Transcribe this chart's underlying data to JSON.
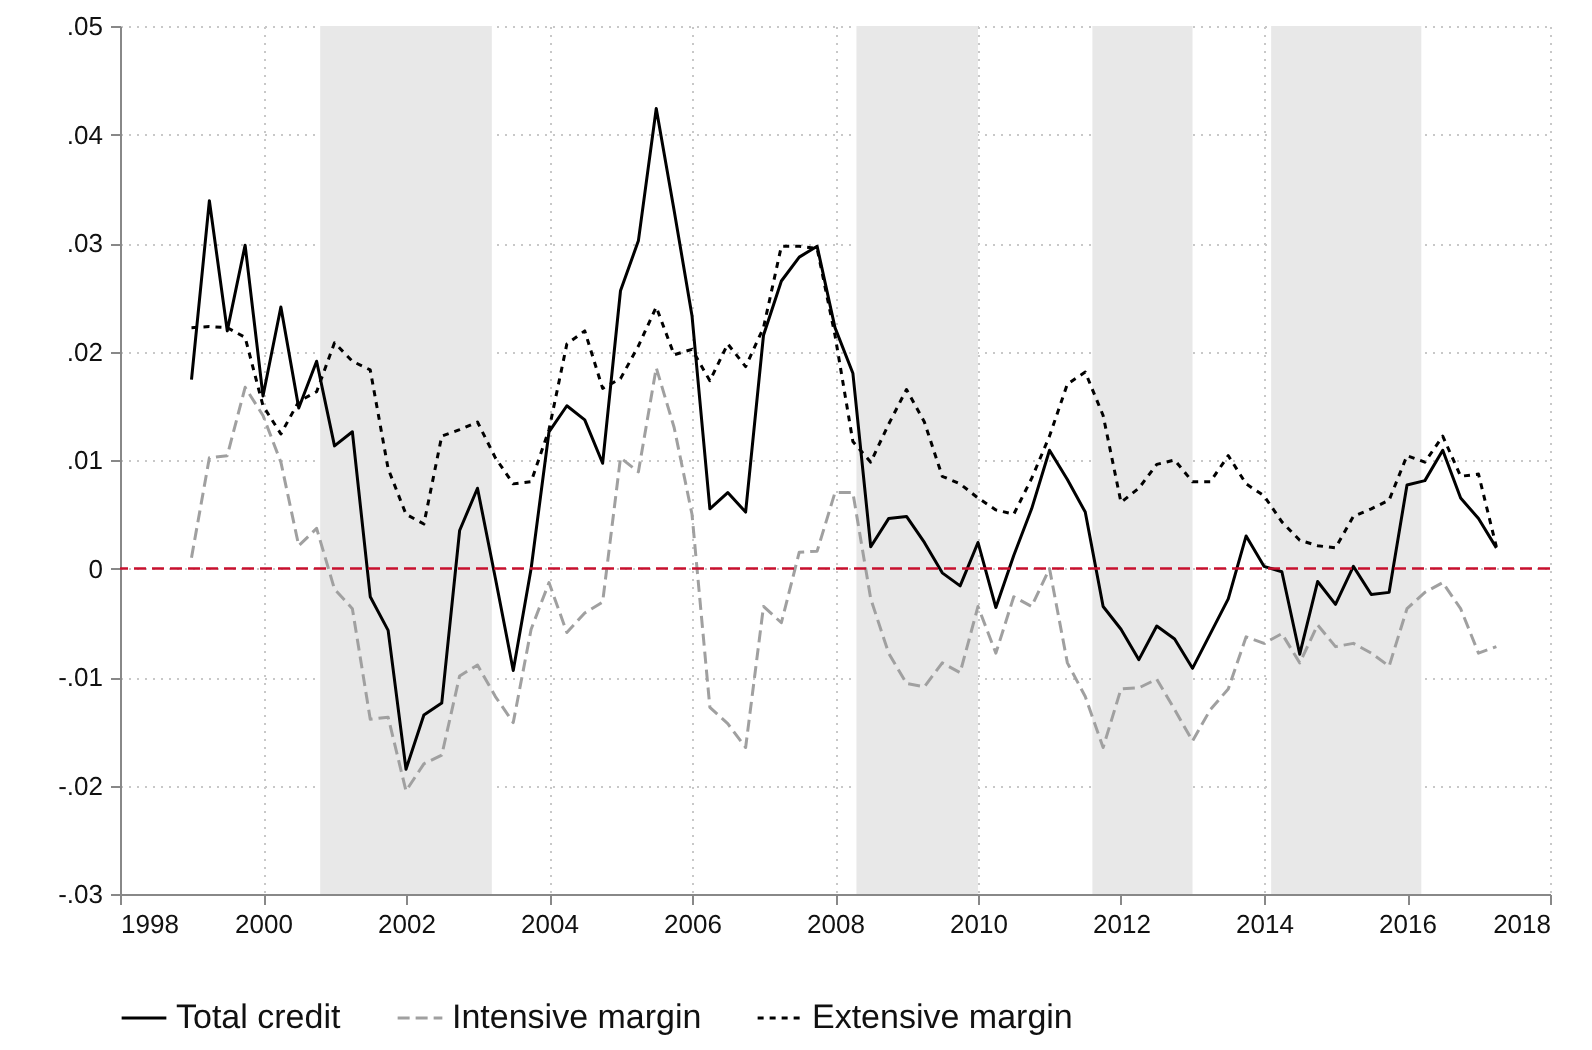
{
  "chart_data": {
    "type": "line",
    "x": [
      1999,
      1999.25,
      1999.5,
      1999.75,
      2000,
      2000.25,
      2000.5,
      2000.75,
      2001,
      2001.25,
      2001.5,
      2001.75,
      2002,
      2002.25,
      2002.5,
      2002.75,
      2003,
      2003.25,
      2003.5,
      2003.75,
      2004,
      2004.25,
      2004.5,
      2004.75,
      2005,
      2005.25,
      2005.5,
      2005.75,
      2006,
      2006.25,
      2006.5,
      2006.75,
      2007,
      2007.25,
      2007.5,
      2007.75,
      2008,
      2008.25,
      2008.5,
      2008.75,
      2009,
      2009.25,
      2009.5,
      2009.75,
      2010,
      2010.25,
      2010.5,
      2010.75,
      2011,
      2011.25,
      2011.5,
      2011.75,
      2012,
      2012.25,
      2012.5,
      2012.75,
      2013,
      2013.25,
      2013.5,
      2013.75,
      2014,
      2014.25,
      2014.5,
      2014.75,
      2015,
      2015.25,
      2015.5,
      2015.75,
      2016,
      2016.25,
      2016.5,
      2016.75,
      2017,
      2017.25
    ],
    "series": [
      {
        "name": "Total credit",
        "color": "#000000",
        "line_style": "solid",
        "values": [
          0.0174,
          0.0339,
          0.0219,
          0.0298,
          0.0159,
          0.0241,
          0.0148,
          0.0191,
          0.0113,
          0.0126,
          -0.0026,
          -0.0057,
          -0.0185,
          -0.0135,
          -0.0124,
          0.0035,
          0.0074,
          -0.0009,
          -0.0094,
          0,
          0.0126,
          0.015,
          0.0137,
          0.0097,
          0.0256,
          0.0302,
          0.0424,
          0.033,
          0.0233,
          0.0055,
          0.007,
          0.0052,
          0.0215,
          0.0265,
          0.0287,
          0.0297,
          0.0222,
          0.018,
          0.002,
          0.0046,
          0.0048,
          0.0024,
          -0.0004,
          -0.0016,
          0.0024,
          -0.0036,
          0.0012,
          0.0055,
          0.0109,
          0.0082,
          0.0052,
          -0.0035,
          -0.0056,
          -0.0084,
          -0.0053,
          -0.0065,
          -0.0092,
          -0.006,
          -0.0028,
          0.003,
          0.0002,
          -0.0003,
          -0.0079,
          -0.0012,
          -0.0033,
          0.0002,
          -0.0024,
          -0.0022,
          0.0077,
          0.0081,
          0.0109,
          0.0065,
          0.0046,
          0.0019
        ]
      },
      {
        "name": "Intensive margin",
        "color": "#a0a0a0",
        "line_style": "dashed",
        "values": [
          0.001,
          0.0102,
          0.0104,
          0.0167,
          0.0141,
          0.0098,
          0.0021,
          0.0037,
          -0.0019,
          -0.0037,
          -0.0139,
          -0.0137,
          -0.0205,
          -0.018,
          -0.0172,
          -0.0099,
          -0.0089,
          -0.0118,
          -0.0142,
          -0.0056,
          -0.0013,
          -0.0059,
          -0.0041,
          -0.0031,
          0.0102,
          0.0089,
          0.0185,
          0.013,
          0.005,
          -0.0128,
          -0.0143,
          -0.0165,
          -0.0035,
          -0.005,
          0.0015,
          0.0016,
          0.007,
          0.007,
          -0.0028,
          -0.0078,
          -0.0106,
          -0.0109,
          -0.0087,
          -0.0096,
          -0.0035,
          -0.0078,
          -0.0026,
          -0.0035,
          0,
          -0.0087,
          -0.0118,
          -0.0165,
          -0.0111,
          -0.011,
          -0.0102,
          -0.013,
          -0.0159,
          -0.013,
          -0.0111,
          -0.0063,
          -0.0069,
          -0.006,
          -0.0087,
          -0.0052,
          -0.0072,
          -0.0069,
          -0.0078,
          -0.009,
          -0.0037,
          -0.0022,
          -0.0013,
          -0.0037,
          -0.0078,
          -0.0072
        ]
      },
      {
        "name": "Extensive margin",
        "color": "#000000",
        "line_style": "dotted",
        "values": [
          0.0222,
          0.0223,
          0.0222,
          0.0213,
          0.015,
          0.0124,
          0.0154,
          0.0163,
          0.0208,
          0.0191,
          0.0183,
          0.0092,
          0.005,
          0.0041,
          0.0122,
          0.0128,
          0.0135,
          0.0102,
          0.0078,
          0.008,
          0.0128,
          0.0207,
          0.0219,
          0.0166,
          0.0175,
          0.0205,
          0.0241,
          0.0197,
          0.0202,
          0.0173,
          0.0207,
          0.0186,
          0.0222,
          0.0297,
          0.0297,
          0.0295,
          0.0215,
          0.0117,
          0.0098,
          0.0133,
          0.0165,
          0.0135,
          0.0085,
          0.0078,
          0.0065,
          0.0054,
          0.005,
          0.0083,
          0.0122,
          0.017,
          0.0181,
          0.0141,
          0.0061,
          0.0074,
          0.0096,
          0.01,
          0.008,
          0.008,
          0.0104,
          0.0078,
          0.0067,
          0.0043,
          0.0026,
          0.0021,
          0.0019,
          0.0048,
          0.0055,
          0.0063,
          0.0104,
          0.0098,
          0.0122,
          0.0085,
          0.0087,
          0.002
        ]
      }
    ],
    "xlim": [
      1998,
      2018
    ],
    "xticks": [
      1998,
      2000,
      2002,
      2004,
      2006,
      2008,
      2010,
      2012,
      2014,
      2016,
      2018
    ],
    "ylim": [
      -0.03,
      0.05
    ],
    "yticks": [
      {
        "value": -0.03,
        "label": "-.03"
      },
      {
        "value": -0.02,
        "label": "-.02"
      },
      {
        "value": -0.01,
        "label": "-.01"
      },
      0,
      {
        "value": 0.01,
        "label": ".01"
      },
      {
        "value": 0.02,
        "label": ".02"
      },
      {
        "value": 0.03,
        "label": ".03"
      },
      {
        "value": 0.04,
        "label": ".04"
      },
      {
        "value": 0.05,
        "label": ".05"
      }
    ],
    "ref_lines": [
      {
        "axis": "y",
        "value": 0,
        "color": "#c8102e",
        "line_style": "dashed"
      }
    ],
    "bands": [
      {
        "axis": "x",
        "from": 2000.8,
        "to": 2003.2,
        "color": "#e8e8e8"
      },
      {
        "axis": "x",
        "from": 2008.3,
        "to": 2010,
        "color": "#e8e8e8"
      },
      {
        "axis": "x",
        "from": 2011.6,
        "to": 2013,
        "color": "#e8e8e8"
      },
      {
        "axis": "x",
        "from": 2014.1,
        "to": 2016.2,
        "color": "#e8e8e8"
      }
    ],
    "grid": true,
    "legend": "bottom"
  }
}
